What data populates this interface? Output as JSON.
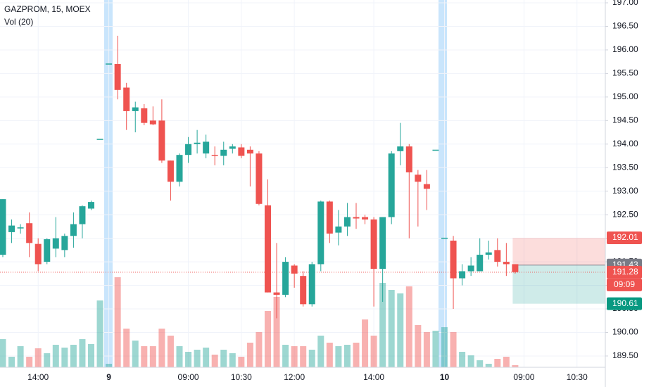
{
  "chart_data": {
    "type": "candlestick",
    "title": "GAZPROM, 15, MOEX",
    "subtitle": "Vol (20)",
    "up_color": "#26a69a",
    "down_color": "#ef5350",
    "grid": true,
    "categories": [
      null,
      null,
      null,
      null,
      "14:00",
      null,
      null,
      null,
      null,
      null,
      null,
      null,
      "9",
      null,
      null,
      null,
      null,
      null,
      null,
      null,
      null,
      "09:00",
      null,
      null,
      null,
      null,
      null,
      "10:30",
      null,
      null,
      null,
      null,
      null,
      "12:00",
      null,
      null,
      null,
      null,
      null,
      null,
      null,
      null,
      "14:00",
      null,
      null,
      null,
      null,
      null,
      null,
      null,
      "10",
      null,
      null,
      null,
      null,
      null,
      null,
      null,
      null,
      "09:00",
      null,
      null,
      null,
      null,
      null,
      "10:30"
    ],
    "open": [
      191.65,
      192.13,
      192.2,
      192.32,
      191.88,
      191.5,
      191.78,
      191.75,
      192.05,
      192.3,
      192.63,
      194.1,
      195.7,
      195.7,
      195.2,
      194.7,
      194.76,
      194.5,
      194.5,
      193.65,
      193.2,
      193.77,
      194.0,
      193.8,
      193.76,
      193.75,
      193.9,
      193.93,
      193.88,
      193.8,
      192.7,
      190.85,
      190.8,
      191.42,
      191.2,
      190.6,
      191.45,
      192.78,
      192.12,
      192.25,
      192.45,
      192.45,
      192.4,
      191.35,
      192.45,
      193.85,
      193.95,
      193.35,
      193.15,
      193.87,
      192.0,
      191.95,
      191.15,
      191.3,
      191.3,
      191.65,
      191.75,
      191.5,
      191.45,
      null,
      null,
      null,
      null,
      null,
      null,
      null
    ],
    "high": [
      192.83,
      192.4,
      192.3,
      192.55,
      192.0,
      192.0,
      192.45,
      192.1,
      192.55,
      192.7,
      192.8,
      194.1,
      195.7,
      196.3,
      195.3,
      194.9,
      194.85,
      194.8,
      194.95,
      193.65,
      193.8,
      194.15,
      194.3,
      194.2,
      193.95,
      194.05,
      194.0,
      194.0,
      193.95,
      193.85,
      193.25,
      191.9,
      191.6,
      191.45,
      191.3,
      191.5,
      192.8,
      192.8,
      192.6,
      192.75,
      192.75,
      192.5,
      192.45,
      192.45,
      193.85,
      194.45,
      194.0,
      193.45,
      193.45,
      193.87,
      192.0,
      192.05,
      191.45,
      191.6,
      192.0,
      191.95,
      192.0,
      191.9,
      191.45,
      null,
      null,
      null,
      null,
      null,
      null,
      null
    ],
    "low": [
      191.6,
      191.9,
      192.1,
      191.6,
      191.3,
      191.45,
      191.6,
      191.6,
      191.8,
      192.0,
      192.6,
      194.1,
      195.7,
      194.95,
      194.3,
      194.25,
      194.4,
      194.4,
      193.6,
      192.8,
      193.1,
      193.6,
      193.8,
      193.7,
      193.55,
      193.55,
      193.8,
      193.7,
      193.1,
      192.7,
      190.85,
      190.3,
      190.75,
      190.95,
      190.55,
      190.55,
      191.3,
      191.9,
      191.85,
      192.05,
      192.2,
      192.3,
      190.55,
      190.65,
      192.3,
      193.55,
      192.0,
      192.25,
      192.6,
      193.87,
      192.0,
      190.5,
      191.0,
      191.2,
      191.3,
      191.55,
      191.4,
      191.2,
      191.25,
      null,
      null,
      null,
      null,
      null,
      null,
      null
    ],
    "close": [
      192.83,
      192.27,
      192.22,
      191.9,
      191.45,
      191.98,
      192.0,
      192.05,
      192.3,
      192.68,
      192.77,
      194.1,
      195.7,
      195.15,
      194.7,
      194.78,
      194.45,
      194.42,
      193.65,
      193.2,
      193.77,
      194.0,
      194.03,
      194.05,
      193.75,
      193.88,
      193.95,
      193.75,
      193.8,
      192.73,
      190.85,
      190.8,
      191.5,
      191.25,
      190.6,
      191.45,
      192.78,
      192.1,
      192.25,
      192.45,
      192.42,
      192.4,
      191.35,
      192.45,
      193.8,
      193.95,
      193.4,
      193.2,
      193.05,
      193.87,
      192.0,
      191.15,
      191.3,
      191.42,
      191.65,
      191.7,
      191.5,
      191.45,
      191.28,
      null,
      null,
      null,
      null,
      null,
      null,
      null
    ],
    "volume": [
      40,
      15,
      30,
      15,
      27,
      20,
      32,
      28,
      32,
      40,
      33,
      95,
      5,
      128,
      55,
      38,
      30,
      30,
      55,
      45,
      30,
      22,
      25,
      28,
      18,
      25,
      20,
      15,
      35,
      50,
      80,
      100,
      32,
      30,
      30,
      25,
      45,
      35,
      30,
      32,
      35,
      68,
      45,
      120,
      110,
      105,
      115,
      60,
      50,
      52,
      57,
      50,
      22,
      17,
      10,
      5,
      12,
      15,
      3,
      null,
      null,
      null,
      null,
      null,
      null,
      null
    ],
    "ylim": [
      189.26,
      197.06
    ],
    "y2lim": [
      0,
      522
    ],
    "yticks": [
      {
        "value": 189.5,
        "label": "189.50"
      },
      {
        "value": 190,
        "label": "190.00"
      },
      {
        "value": 190.5,
        "label": "190.50"
      },
      {
        "value": 191,
        "label": "191.00"
      },
      {
        "value": 191.5,
        "label": "191.50"
      },
      {
        "value": 192,
        "label": "192.00"
      },
      {
        "value": 192.5,
        "label": "192.50"
      },
      {
        "value": 193,
        "label": "193.00"
      },
      {
        "value": 193.5,
        "label": "193.50"
      },
      {
        "value": 194,
        "label": "194.00"
      },
      {
        "value": 194.5,
        "label": "194.50"
      },
      {
        "value": 195,
        "label": "195.00"
      },
      {
        "value": 195.5,
        "label": "195.50"
      },
      {
        "value": 196,
        "label": "196.00"
      },
      {
        "value": 196.5,
        "label": "196.50"
      },
      {
        "value": 197,
        "label": "197.00"
      }
    ],
    "position": {
      "target": 192.01,
      "entry": 191.43,
      "stop": 190.61
    },
    "last_price": 191.28,
    "price_labels": [
      {
        "value": 192.01,
        "label": "192.01",
        "color": "#ef5350"
      },
      {
        "value": 191.43,
        "label": "191.43",
        "color": "#787b86"
      },
      {
        "value": 191.28,
        "label": "191.28",
        "color": "#ef5350"
      },
      {
        "value": 190.61,
        "label": "190.61",
        "color": "#089981"
      }
    ],
    "countdown": "09:09"
  }
}
